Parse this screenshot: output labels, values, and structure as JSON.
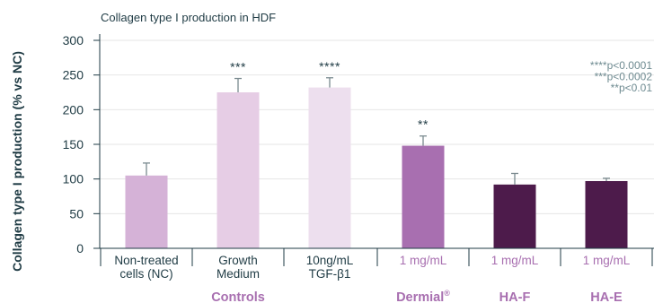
{
  "chart_data": {
    "type": "bar",
    "title": "Collagen type I production in HDF",
    "ylabel": "Collagen type I production (% vs NC)",
    "xlabel": "",
    "ylim": [
      0,
      300
    ],
    "yticks": [
      0,
      50,
      100,
      150,
      200,
      250,
      300
    ],
    "grid": true,
    "categories": [
      [
        "Non-treated",
        "cells (NC)"
      ],
      [
        "Growth",
        "Medium"
      ],
      [
        "10ng/mL",
        "TGF-β1"
      ],
      [
        "1 mg/mL"
      ],
      [
        "1 mg/mL"
      ],
      [
        "1 mg/mL"
      ]
    ],
    "values": [
      105,
      225,
      232,
      148,
      92,
      97
    ],
    "errors": [
      18,
      20,
      14,
      14,
      16,
      4
    ],
    "significance": [
      "",
      "***",
      "****",
      "**",
      "",
      ""
    ],
    "bar_colors": [
      "#d5b2d7",
      "#e6cde5",
      "#eddfee",
      "#a86fb0",
      "#4d1b4b",
      "#4d1b4b"
    ],
    "category_text_colors": [
      "#1f3b44",
      "#1f3b44",
      "#1f3b44",
      "#a86fb0",
      "#a86fb0",
      "#a86fb0"
    ],
    "groups": [
      {
        "label": "Controls",
        "superscript": "",
        "members": [
          0,
          1,
          2
        ]
      },
      {
        "label": "Dermial",
        "superscript": "®",
        "members": [
          3
        ]
      },
      {
        "label": "HA-F",
        "superscript": "",
        "members": [
          4
        ]
      },
      {
        "label": "HA-E",
        "superscript": "",
        "members": [
          5
        ]
      }
    ],
    "legend": [
      "****p<0.0001",
      "***p<0.0002",
      "**p<0.01"
    ],
    "legend_position": "top-right"
  }
}
